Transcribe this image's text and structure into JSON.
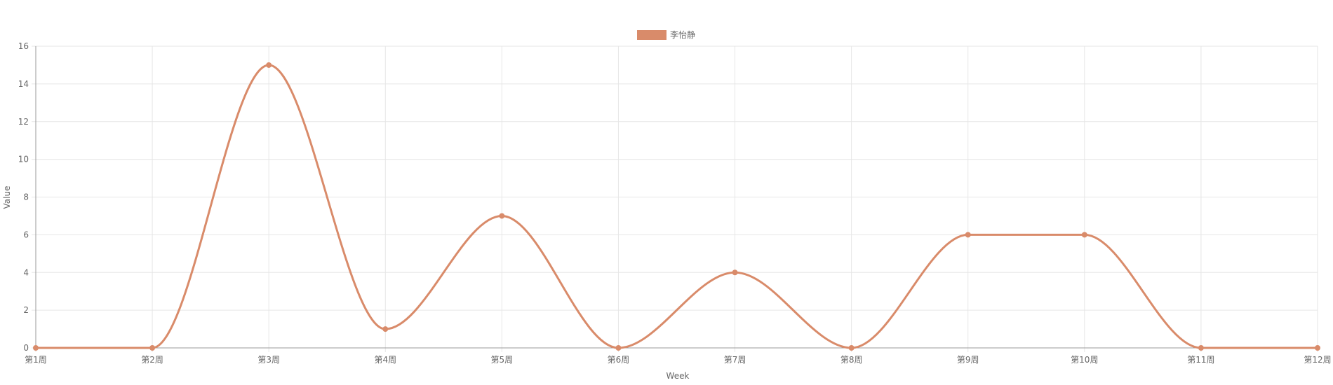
{
  "chart_data": {
    "type": "line",
    "smooth": true,
    "categories": [
      "第1周",
      "第2周",
      "第3周",
      "第4周",
      "第5周",
      "第6周",
      "第7周",
      "第8周",
      "第9周",
      "第10周",
      "第11周",
      "第12周"
    ],
    "series": [
      {
        "name": "李怡静",
        "values": [
          0,
          0,
          15,
          1,
          7,
          0,
          4,
          0,
          6,
          6,
          0,
          0
        ],
        "color": "#d98b6a"
      }
    ],
    "xlabel": "Week",
    "ylabel": "Value",
    "ylim": [
      0,
      16
    ],
    "yticks": [
      0,
      2,
      4,
      6,
      8,
      10,
      12,
      14,
      16
    ],
    "grid": true,
    "legend_position": "top-center"
  },
  "colors": {
    "grid": "#e6e6e6",
    "axis": "#999999",
    "text": "#666666"
  }
}
